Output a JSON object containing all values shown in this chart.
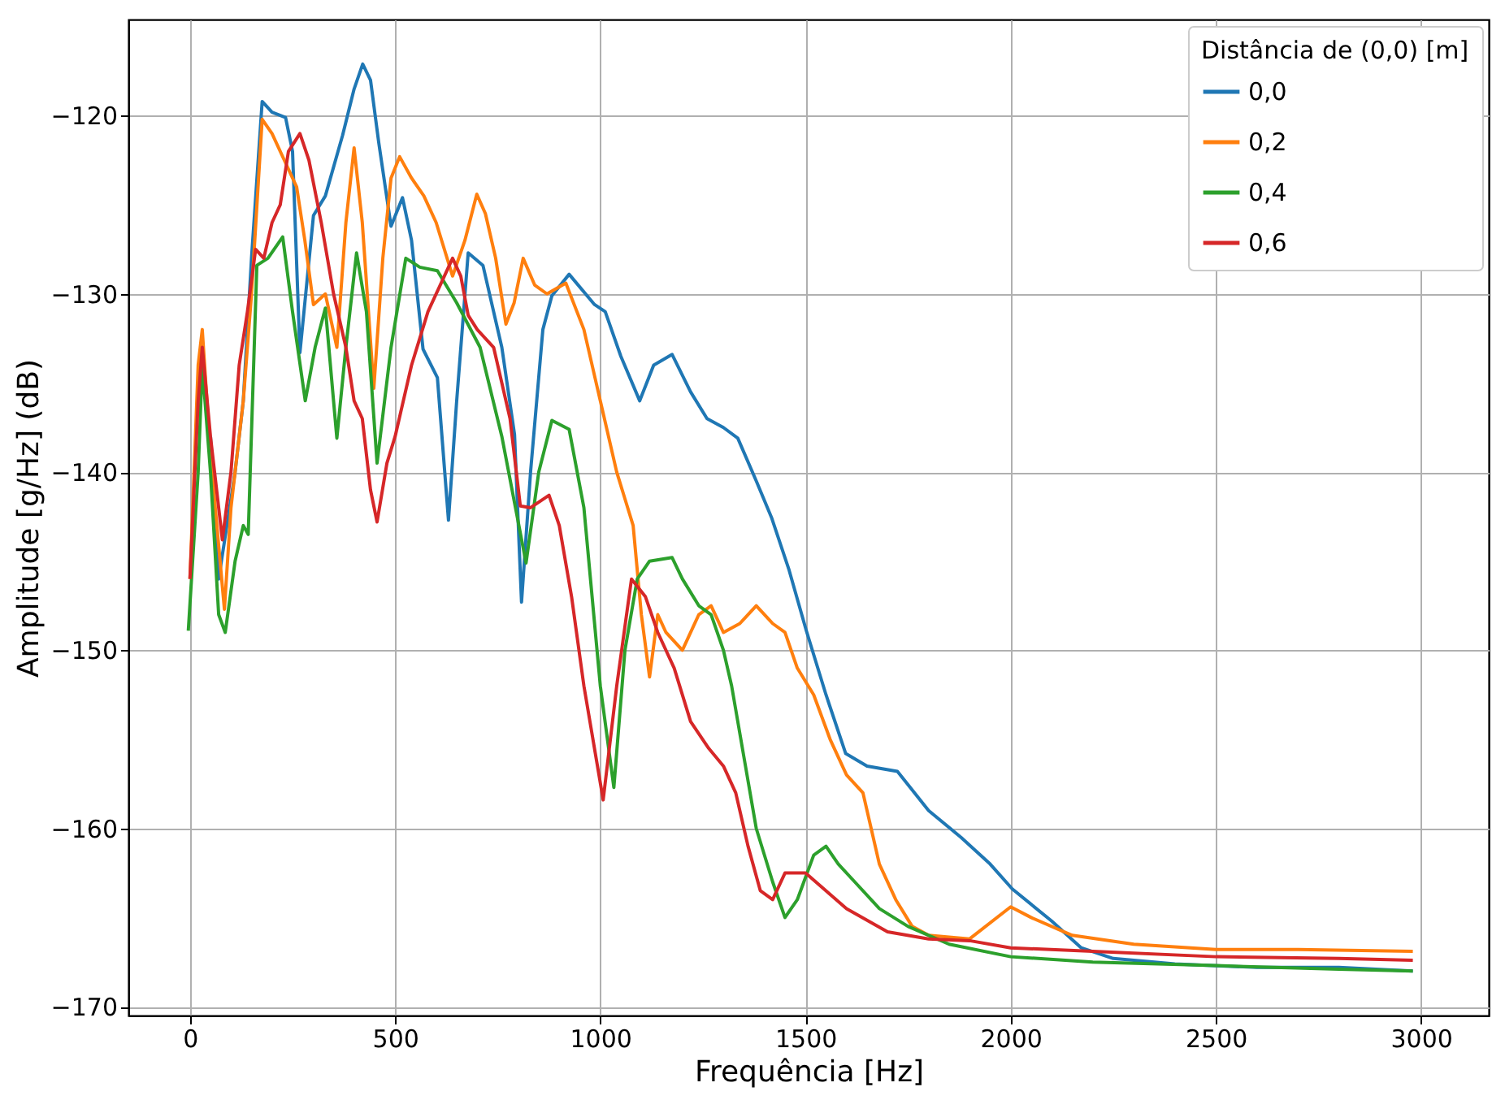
{
  "chart_data": {
    "type": "line",
    "xlabel": "Frequência [Hz]",
    "ylabel": "Amplitude [g/Hz] (dB)",
    "legend_title": "Distância de (0,0) [m]",
    "xlim": [
      -150,
      3165
    ],
    "xticks": [
      0,
      500,
      1000,
      1500,
      2000,
      2500,
      3000
    ],
    "ylim": [
      -170.5,
      -114.6
    ],
    "yticks": [
      -170,
      -160,
      -150,
      -140,
      -130,
      -120
    ],
    "grid": true,
    "legend": "top right",
    "marker": "none",
    "line_style": "solid",
    "series": [
      {
        "name": "0,0",
        "color": "#1f77b4",
        "x": [
          50,
          70,
          90,
          110,
          130,
          150,
          176,
          200,
          233,
          250,
          268,
          301,
          330,
          372,
          400,
          421,
          440,
          460,
          490,
          518,
          540,
          568,
          603,
          630,
          650,
          678,
          714,
          760,
          791,
          808,
          830,
          860,
          882,
          924,
          986,
          1012,
          1050,
          1096,
          1130,
          1175,
          1220,
          1260,
          1300,
          1335,
          1380,
          1418,
          1460,
          1502,
          1550,
          1598,
          1650,
          1724,
          1800,
          1879,
          1950,
          2004,
          2100,
          2172,
          2250,
          2400,
          2600,
          2800,
          2980
        ],
        "values": [
          -138,
          -146,
          -143,
          -140,
          -136,
          -128,
          -119.2,
          -119.8,
          -120.1,
          -122,
          -133.3,
          -125.6,
          -124.5,
          -121.1,
          -118.5,
          -117.1,
          -118,
          -121.5,
          -126.2,
          -124.6,
          -127,
          -133.1,
          -134.7,
          -142.7,
          -136,
          -127.7,
          -128.4,
          -133,
          -137.9,
          -147.3,
          -140,
          -132,
          -130.1,
          -128.9,
          -130.6,
          -131,
          -133.5,
          -136,
          -134,
          -133.4,
          -135.5,
          -137,
          -137.5,
          -138.1,
          -140.5,
          -142.6,
          -145.5,
          -148.9,
          -152.5,
          -155.8,
          -156.5,
          -156.8,
          -159,
          -160.5,
          -162,
          -163.4,
          -165.2,
          -166.7,
          -167.3,
          -167.6,
          -167.8,
          -167.8,
          -168
        ]
      },
      {
        "name": "0,2",
        "color": "#ff7f0e",
        "x": [
          0,
          20,
          30,
          50,
          84,
          100,
          130,
          150,
          176,
          200,
          230,
          260,
          280,
          301,
          330,
          358,
          380,
          400,
          420,
          448,
          470,
          490,
          511,
          540,
          570,
          600,
          640,
          670,
          699,
          720,
          745,
          770,
          790,
          812,
          840,
          870,
          916,
          960,
          1000,
          1040,
          1060,
          1080,
          1100,
          1120,
          1140,
          1160,
          1200,
          1240,
          1270,
          1300,
          1340,
          1380,
          1420,
          1450,
          1480,
          1520,
          1560,
          1600,
          1640,
          1680,
          1720,
          1760,
          1800,
          1900,
          2000,
          2050,
          2150,
          2300,
          2500,
          2700,
          2980
        ],
        "values": [
          -146,
          -134,
          -132,
          -139,
          -147.7,
          -142,
          -136,
          -130,
          -120.2,
          -121,
          -122.5,
          -124,
          -127,
          -130.6,
          -130,
          -133,
          -126,
          -121.8,
          -126,
          -135.3,
          -128,
          -123.5,
          -122.3,
          -123.5,
          -124.5,
          -126,
          -129,
          -127,
          -124.4,
          -125.5,
          -128,
          -131.7,
          -130.5,
          -128,
          -129.5,
          -130,
          -129.4,
          -132,
          -136,
          -140,
          -141.5,
          -143,
          -148,
          -151.5,
          -148,
          -149,
          -150,
          -148,
          -147.5,
          -149,
          -148.5,
          -147.5,
          -148.5,
          -149,
          -151,
          -152.5,
          -155,
          -157,
          -158,
          -162,
          -164,
          -165.5,
          -166,
          -166.2,
          -164.4,
          -165,
          -166,
          -166.5,
          -166.8,
          -166.8,
          -166.9
        ]
      },
      {
        "name": "0,4",
        "color": "#2ca02c",
        "x": [
          -4,
          20,
          30,
          50,
          70,
          86,
          110,
          130,
          142,
          163,
          190,
          226,
          250,
          281,
          305,
          330,
          358,
          380,
          406,
          430,
          456,
          490,
          526,
          560,
          603,
          650,
          707,
          760,
          819,
          850,
          882,
          924,
          960,
          1000,
          1033,
          1060,
          1090,
          1120,
          1175,
          1200,
          1240,
          1270,
          1300,
          1320,
          1350,
          1380,
          1420,
          1450,
          1480,
          1520,
          1550,
          1580,
          1620,
          1680,
          1750,
          1850,
          2000,
          2200,
          2500,
          2800,
          2980
        ],
        "values": [
          -148.9,
          -140,
          -134,
          -140,
          -148,
          -149,
          -145,
          -143,
          -143.5,
          -128.4,
          -128,
          -126.8,
          -131,
          -136,
          -133,
          -130.8,
          -138.1,
          -133,
          -127.7,
          -131,
          -139.5,
          -133,
          -128,
          -128.5,
          -128.7,
          -130.5,
          -133,
          -138,
          -145.1,
          -140,
          -137.1,
          -137.6,
          -142,
          -152,
          -157.7,
          -150,
          -146,
          -145,
          -144.8,
          -146,
          -147.5,
          -148,
          -150,
          -152,
          -156,
          -160,
          -163,
          -165,
          -164,
          -161.5,
          -161,
          -162,
          -163,
          -164.5,
          -165.5,
          -166.5,
          -167.2,
          -167.5,
          -167.7,
          -167.9,
          -168
        ]
      },
      {
        "name": "0,6",
        "color": "#d62728",
        "x": [
          0,
          20,
          30,
          50,
          79,
          100,
          120,
          140,
          160,
          180,
          200,
          220,
          240,
          268,
          290,
          320,
          350,
          380,
          400,
          420,
          440,
          456,
          480,
          500,
          540,
          580,
          620,
          640,
          660,
          678,
          700,
          740,
          780,
          805,
          830,
          875,
          900,
          930,
          960,
          1007,
          1040,
          1076,
          1110,
          1140,
          1180,
          1220,
          1264,
          1300,
          1330,
          1360,
          1390,
          1420,
          1450,
          1500,
          1550,
          1600,
          1700,
          1800,
          1900,
          2000,
          2200,
          2500,
          2800,
          2980
        ],
        "values": [
          -146,
          -136,
          -133,
          -138,
          -143.8,
          -140,
          -134,
          -131,
          -127.5,
          -128,
          -126,
          -125,
          -122,
          -121,
          -122.5,
          -126,
          -130,
          -133,
          -136,
          -137,
          -141,
          -142.8,
          -139.5,
          -138,
          -134,
          -131,
          -129,
          -128,
          -129,
          -131.2,
          -132,
          -133,
          -137,
          -141.9,
          -142,
          -141.3,
          -143,
          -147,
          -152,
          -158.4,
          -152,
          -146,
          -147,
          -149,
          -151,
          -154,
          -155.5,
          -156.5,
          -158,
          -161,
          -163.5,
          -164,
          -162.5,
          -162.5,
          -163.5,
          -164.5,
          -165.8,
          -166.2,
          -166.3,
          -166.7,
          -166.9,
          -167.2,
          -167.3,
          -167.4
        ]
      }
    ]
  }
}
